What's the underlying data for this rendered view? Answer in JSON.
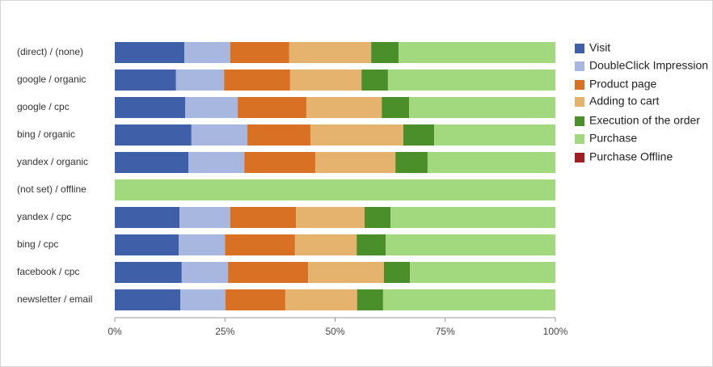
{
  "chart_data": {
    "type": "stacked-bar-horizontal-100",
    "categories": [
      "(direct) / (none)",
      "google / organic",
      "google / cpc",
      "bing / organic",
      "yandex / organic",
      "(not set) / offline",
      "yandex / cpc",
      "bing / cpc",
      "facebook / cpc",
      "newsletter / email"
    ],
    "series": [
      {
        "name": "Visit",
        "color": "#3f5fa8",
        "values": [
          15.8,
          13.9,
          16.0,
          17.4,
          16.7,
          0,
          14.7,
          14.5,
          15.2,
          14.9
        ]
      },
      {
        "name": "DoubleClick Impression",
        "color": "#a8b7e0",
        "values": [
          10.4,
          10.9,
          11.9,
          12.7,
          12.7,
          0,
          11.5,
          10.5,
          10.5,
          10.2
        ]
      },
      {
        "name": "Product page",
        "color": "#d87124",
        "values": [
          13.4,
          15.0,
          15.6,
          14.3,
          16.1,
          0,
          14.9,
          15.9,
          18.2,
          13.6
        ]
      },
      {
        "name": "Adding to cart",
        "color": "#e6b36e",
        "values": [
          18.6,
          16.2,
          17.1,
          21.1,
          18.2,
          0,
          15.6,
          14.0,
          17.2,
          16.3
        ]
      },
      {
        "name": "Execution of the order",
        "color": "#4a8f2a",
        "values": [
          6.2,
          6.0,
          6.2,
          7.0,
          7.3,
          0,
          5.9,
          6.6,
          5.9,
          5.9
        ]
      },
      {
        "name": "Purchase",
        "color": "#a3d97e",
        "values": [
          35.6,
          38.0,
          33.2,
          27.5,
          29.0,
          100,
          37.4,
          38.5,
          33.0,
          39.1
        ]
      },
      {
        "name": "Purchase Offline",
        "color": "#a01e1e",
        "values": [
          0,
          0,
          0,
          0,
          0,
          0,
          0,
          0,
          0,
          0
        ]
      }
    ],
    "xlim": [
      0,
      100
    ],
    "xticks": [
      {
        "value": 0,
        "label": "0%"
      },
      {
        "value": 25,
        "label": "25%"
      },
      {
        "value": 50,
        "label": "50%"
      },
      {
        "value": 75,
        "label": "75%"
      },
      {
        "value": 100,
        "label": "100%"
      }
    ],
    "legend": "right"
  }
}
